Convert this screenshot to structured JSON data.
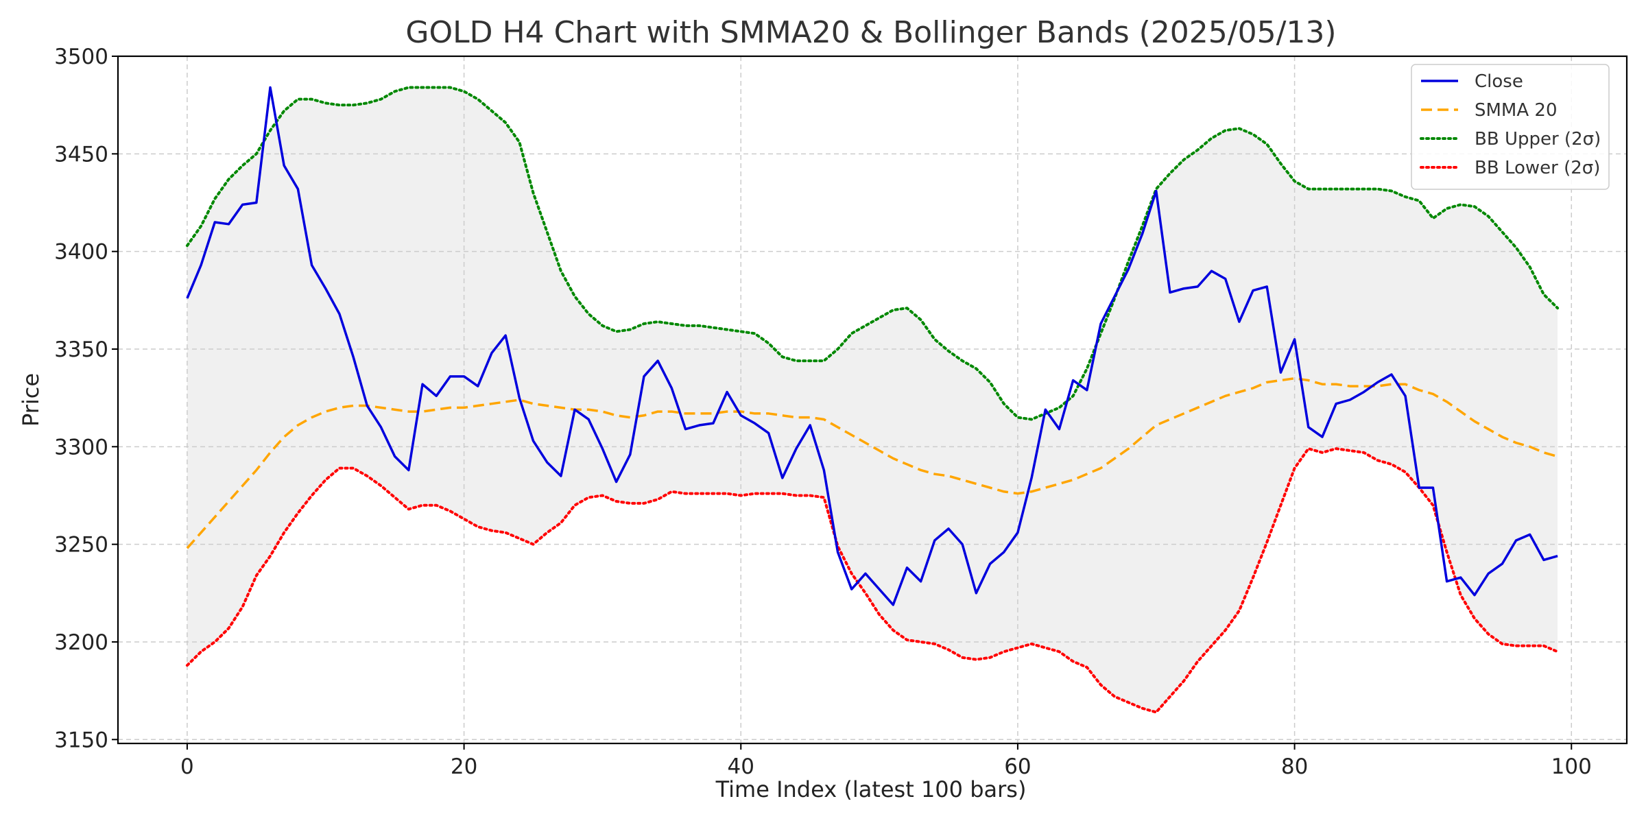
{
  "chart_data": {
    "type": "line",
    "title": "GOLD H4 Chart with SMMA20 & Bollinger Bands (2025/05/13)",
    "xlabel": "Time Index (latest 100 bars)",
    "ylabel": "Price",
    "xlim": [
      -5,
      104
    ],
    "ylim": [
      3148,
      3500
    ],
    "xticks": [
      0,
      20,
      40,
      60,
      80,
      100
    ],
    "yticks": [
      3150,
      3200,
      3250,
      3300,
      3350,
      3400,
      3450,
      3500
    ],
    "grid": true,
    "legend_position": "top-right",
    "band_fill": "#f0f0f0",
    "series": [
      {
        "name": "Close",
        "color": "#0000dd",
        "style": "solid",
        "values": [
          3376,
          3393,
          3415,
          3414,
          3424,
          3425,
          3484,
          3444,
          3432,
          3393,
          3381,
          3368,
          3346,
          3321,
          3310,
          3295,
          3288,
          3332,
          3326,
          3336,
          3336,
          3331,
          3348,
          3357,
          3325,
          3303,
          3292,
          3285,
          3319,
          3314,
          3299,
          3282,
          3296,
          3336,
          3344,
          3330,
          3309,
          3311,
          3312,
          3328,
          3316,
          3312,
          3307,
          3284,
          3299,
          3311,
          3288,
          3246,
          3227,
          3235,
          3227,
          3219,
          3238,
          3231,
          3252,
          3258,
          3250,
          3225,
          3240,
          3246,
          3256,
          3284,
          3319,
          3309,
          3334,
          3329,
          3363,
          3377,
          3391,
          3409,
          3431,
          3379,
          3381,
          3382,
          3390,
          3386,
          3364,
          3380,
          3382,
          3338,
          3355,
          3310,
          3305,
          3322,
          3324,
          3328,
          3333,
          3337,
          3326,
          3279,
          3279,
          3231,
          3233,
          3224,
          3235,
          3240,
          3252,
          3255,
          3242,
          3244
        ]
      },
      {
        "name": "SMMA 20",
        "color": "#ffa500",
        "style": "dashed",
        "values": [
          3248,
          3256,
          3264,
          3272,
          3280,
          3288,
          3297,
          3305,
          3311,
          3315,
          3318,
          3320,
          3321,
          3321,
          3320,
          3319,
          3318,
          3318,
          3319,
          3320,
          3320,
          3321,
          3322,
          3323,
          3324,
          3322,
          3321,
          3320,
          3319,
          3319,
          3318,
          3316,
          3315,
          3316,
          3318,
          3318,
          3317,
          3317,
          3317,
          3318,
          3318,
          3317,
          3317,
          3316,
          3315,
          3315,
          3314,
          3310,
          3306,
          3302,
          3298,
          3294,
          3291,
          3288,
          3286,
          3285,
          3283,
          3281,
          3279,
          3277,
          3276,
          3277,
          3279,
          3281,
          3283,
          3286,
          3289,
          3294,
          3299,
          3305,
          3311,
          3314,
          3317,
          3320,
          3323,
          3326,
          3328,
          3330,
          3333,
          3334,
          3335,
          3334,
          3332,
          3332,
          3331,
          3331,
          3331,
          3332,
          3332,
          3329,
          3327,
          3323,
          3318,
          3313,
          3309,
          3305,
          3302,
          3300,
          3297,
          3295
        ]
      },
      {
        "name": "BB Upper (2σ)",
        "color": "#008800",
        "style": "dotted",
        "values": [
          3403,
          3413,
          3427,
          3437,
          3444,
          3450,
          3462,
          3472,
          3478,
          3478,
          3476,
          3475,
          3475,
          3476,
          3478,
          3482,
          3484,
          3484,
          3484,
          3484,
          3482,
          3478,
          3472,
          3466,
          3456,
          3430,
          3410,
          3390,
          3377,
          3368,
          3362,
          3359,
          3360,
          3363,
          3364,
          3363,
          3362,
          3362,
          3361,
          3360,
          3359,
          3358,
          3353,
          3346,
          3344,
          3344,
          3344,
          3350,
          3358,
          3362,
          3366,
          3370,
          3371,
          3365,
          3355,
          3349,
          3344,
          3340,
          3333,
          3322,
          3315,
          3314,
          3317,
          3320,
          3326,
          3340,
          3358,
          3376,
          3395,
          3413,
          3432,
          3440,
          3447,
          3452,
          3458,
          3462,
          3463,
          3460,
          3455,
          3445,
          3436,
          3432,
          3432,
          3432,
          3432,
          3432,
          3432,
          3431,
          3428,
          3426,
          3417,
          3422,
          3424,
          3423,
          3418,
          3410,
          3402,
          3392,
          3378,
          3371
        ]
      },
      {
        "name": "BB Lower (2σ)",
        "color": "#ff0000",
        "style": "dotted",
        "values": [
          3188,
          3195,
          3200,
          3207,
          3218,
          3234,
          3244,
          3256,
          3266,
          3275,
          3283,
          3289,
          3289,
          3285,
          3280,
          3274,
          3268,
          3270,
          3270,
          3267,
          3263,
          3259,
          3257,
          3256,
          3253,
          3250,
          3256,
          3261,
          3270,
          3274,
          3275,
          3272,
          3271,
          3271,
          3273,
          3277,
          3276,
          3276,
          3276,
          3276,
          3275,
          3276,
          3276,
          3276,
          3275,
          3275,
          3274,
          3249,
          3235,
          3225,
          3214,
          3206,
          3201,
          3200,
          3199,
          3196,
          3192,
          3191,
          3192,
          3195,
          3197,
          3199,
          3197,
          3195,
          3190,
          3187,
          3178,
          3172,
          3169,
          3166,
          3164,
          3172,
          3180,
          3190,
          3198,
          3206,
          3216,
          3233,
          3251,
          3270,
          3289,
          3299,
          3297,
          3299,
          3298,
          3297,
          3293,
          3291,
          3287,
          3279,
          3270,
          3246,
          3224,
          3212,
          3204,
          3199,
          3198,
          3198,
          3198,
          3195
        ]
      }
    ]
  }
}
